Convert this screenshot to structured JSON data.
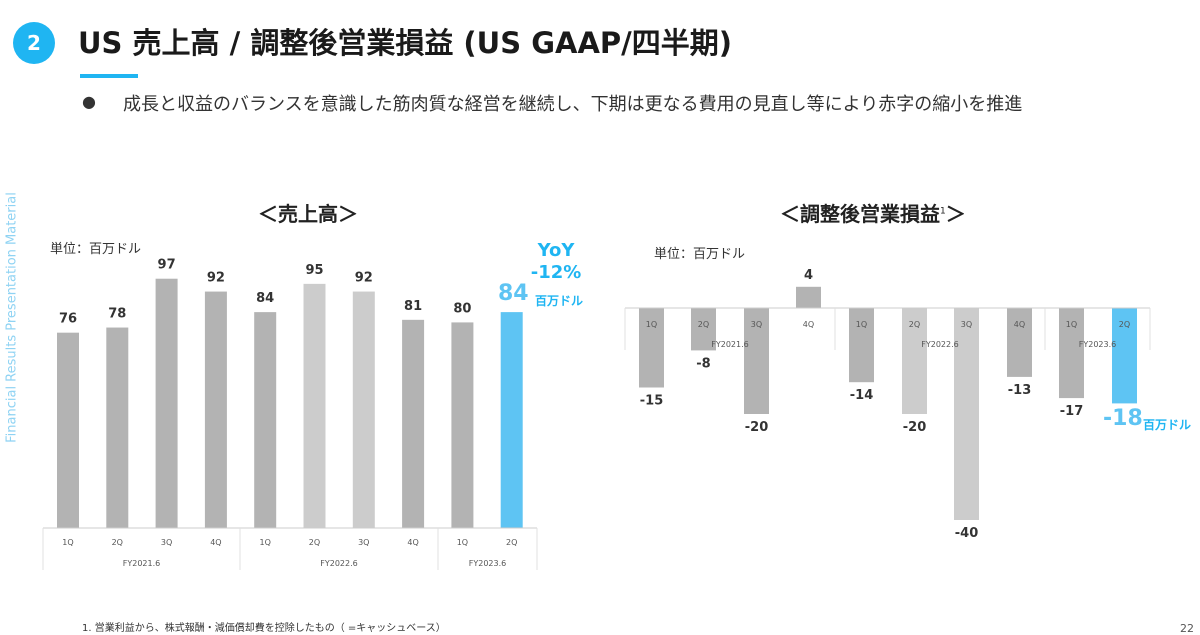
{
  "header": {
    "badge": "2",
    "title": "US 売上高 / 調整後営業損益 (US GAAP/四半期)"
  },
  "bullet": {
    "marker": "●",
    "text": "成長と収益のバランスを意識した筋肉質な経営を継続し、下期は更なる費用の見直し等により赤字の縮小を推進"
  },
  "side_label": "Financial Results Presentation Material",
  "left_chart": {
    "title": "＜売上高＞",
    "unit": "単位：百万ドル",
    "yoy_label": "YoY",
    "yoy_value": "-12%",
    "highlight_value": "84",
    "highlight_unit": "百万ドル"
  },
  "right_chart": {
    "title": "＜調整後営業損益",
    "title_sup": "1",
    "title_end": "＞",
    "unit": "単位：百万ドル",
    "highlight_value": "-18",
    "highlight_unit": "百万ドル"
  },
  "footnote": "1. 営業利益から、株式報酬・減価償却費を控除したもの（ =キャッシュベース）",
  "page_number": "22",
  "colors": {
    "accent": "#1fb5f2",
    "bar": "#b3b3b3",
    "bar_alt": "#cccccc",
    "highlight_bar": "#5ec4f3"
  },
  "chart_data": [
    {
      "type": "bar",
      "title": "＜売上高＞",
      "categories": [
        "1Q",
        "2Q",
        "3Q",
        "4Q",
        "1Q",
        "2Q",
        "3Q",
        "4Q",
        "1Q",
        "2Q"
      ],
      "groups": [
        {
          "label": "FY2021.6",
          "count": 4
        },
        {
          "label": "FY2022.6",
          "count": 4
        },
        {
          "label": "FY2023.6",
          "count": 2
        }
      ],
      "values": [
        76,
        78,
        97,
        92,
        84,
        95,
        92,
        81,
        80,
        84
      ],
      "value_labels": [
        "76",
        "78",
        "97",
        "92",
        "84",
        "95",
        "92",
        "81",
        "80",
        ""
      ],
      "highlight_index": 9,
      "unit": "百万ドル",
      "ylim": [
        0,
        100
      ],
      "grid": false
    },
    {
      "type": "bar",
      "title": "＜調整後営業損益＞",
      "categories": [
        "1Q",
        "2Q",
        "3Q",
        "4Q",
        "1Q",
        "2Q",
        "3Q",
        "4Q",
        "1Q",
        "2Q"
      ],
      "groups": [
        {
          "label": "FY2021.6",
          "count": 4
        },
        {
          "label": "FY2022.6",
          "count": 4
        },
        {
          "label": "FY2023.6",
          "count": 2
        }
      ],
      "values": [
        -15,
        -8,
        -20,
        4,
        -14,
        -20,
        -40,
        -13,
        -17,
        -18
      ],
      "value_labels": [
        "-15",
        "-8",
        "-20",
        "4",
        "-14",
        "-20",
        "-40",
        "-13",
        "-17",
        ""
      ],
      "highlight_index": 9,
      "unit": "百万ドル",
      "ylim": [
        -40,
        4
      ],
      "grid": false
    }
  ]
}
